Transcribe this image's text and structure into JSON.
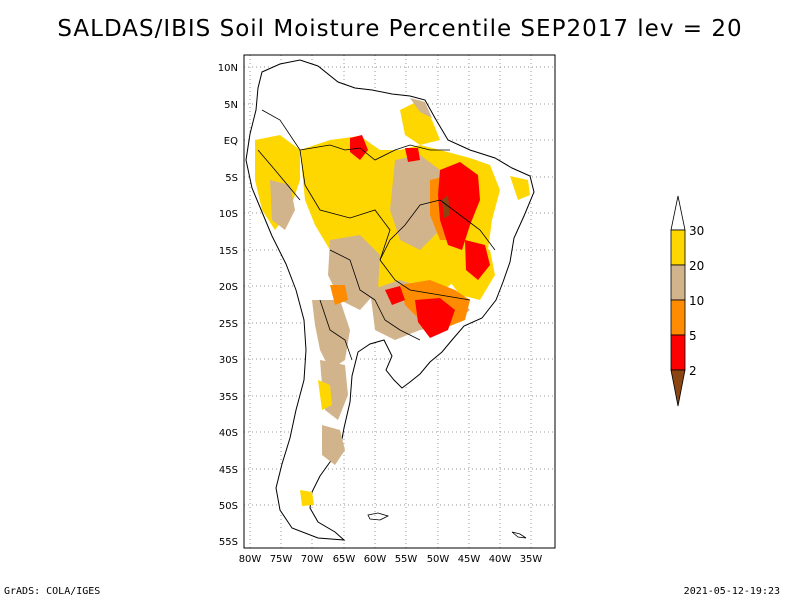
{
  "title": "SALDAS/IBIS Soil Moisture Percentile SEP2017 lev = 20",
  "footer_left": "GrADS: COLA/IGES",
  "footer_right": "2021-05-12-19:23",
  "lat_ticks": [
    "10N",
    "5N",
    "EQ",
    "5S",
    "10S",
    "15S",
    "20S",
    "25S",
    "30S",
    "35S",
    "40S",
    "45S",
    "50S",
    "55S"
  ],
  "lon_ticks": [
    "80W",
    "75W",
    "70W",
    "65W",
    "60W",
    "55W",
    "50W",
    "45W",
    "40W",
    "35W"
  ],
  "colorbar": {
    "labels": [
      "2",
      "5",
      "10",
      "20",
      "30"
    ],
    "colors": {
      "below_2": "#8b4513",
      "2_5": "#ff0000",
      "5_10": "#ff8c00",
      "10_20": "#d2b48c",
      "20_30": "#ffd700",
      "above_30": "#ffffff"
    }
  }
}
